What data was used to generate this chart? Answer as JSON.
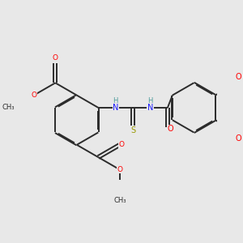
{
  "bg_color": "#e8e8e8",
  "bond_color": "#2b2b2b",
  "bond_width": 1.4,
  "dbo": 0.018,
  "O_color": "#ff0000",
  "N_color": "#1a1aff",
  "S_color": "#999900",
  "H_color": "#4a9a9a",
  "font_size": 6.5,
  "fig_width": 3.0,
  "fig_height": 3.0,
  "dpi": 100,
  "xlim": [
    -0.5,
    5.8
  ],
  "ylim": [
    -1.8,
    2.2
  ]
}
